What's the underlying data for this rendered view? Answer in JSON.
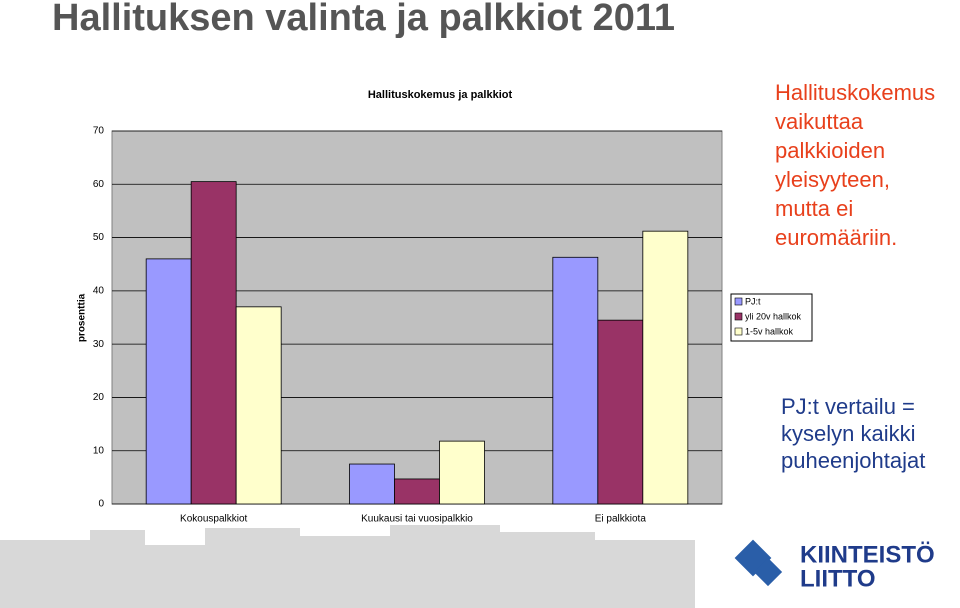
{
  "slide": {
    "title": "Hallituksen valinta ja palkkiot 2011",
    "note_lines": [
      "Hallituskokemus",
      "vaikuttaa",
      "palkkioiden",
      "yleisyyteen,",
      "mutta ei",
      "euromääriin."
    ],
    "note2_lines": [
      "PJ:t vertailu =",
      "kyselyn kaikki",
      "puheenjohtajat"
    ],
    "logo_lines": [
      "KIINTEISTÖ",
      "LIITTO"
    ]
  },
  "chart_data": {
    "type": "bar",
    "title": "Hallituskokemus ja palkkiot",
    "ylabel": "prosenttia",
    "categories": [
      "Kokouspalkkiot",
      "Kuukausi tai vuosipalkkio",
      "Ei palkkiota"
    ],
    "series": [
      {
        "name": "PJ:t",
        "color": "#9999ff",
        "values": [
          46,
          7.5,
          46.3
        ]
      },
      {
        "name": "yli 20v hallkok",
        "color": "#993366",
        "values": [
          60.5,
          4.7,
          34.5
        ]
      },
      {
        "name": "1-5v hallkok",
        "color": "#ffffcc",
        "values": [
          37,
          11.8,
          51.2
        ]
      }
    ],
    "ylim": [
      0,
      70
    ],
    "yticks": [
      0,
      10,
      20,
      30,
      40,
      50,
      60,
      70
    ],
    "grid": true,
    "legend": "right"
  }
}
